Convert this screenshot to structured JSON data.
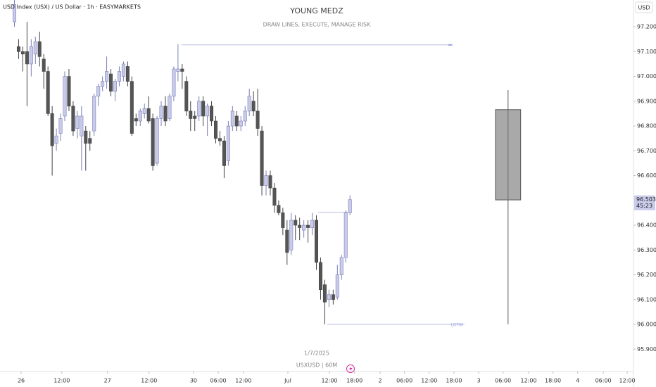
{
  "chart_data": {
    "type": "candlestick",
    "symbol_label": "USD Index (USX) / US Dollar · 1h · EASYMARKETS",
    "title": "YOUNG MEDZ",
    "subtitle": "DRAW LINES, EXECUTE, MANAGE RISK",
    "date_label": "1/7/2025",
    "footer": "USXUSD | 60M",
    "currency": "USD",
    "x": [
      0,
      1,
      2,
      3,
      4,
      5,
      6,
      7,
      8,
      9,
      10,
      11,
      12,
      13,
      14,
      15,
      16,
      17,
      18,
      19,
      20,
      21,
      22,
      23,
      24,
      25,
      26,
      27,
      28,
      29,
      30,
      31,
      32,
      33,
      34,
      35,
      36,
      37,
      38,
      39,
      40,
      41,
      42,
      43,
      44,
      45,
      46,
      47,
      48,
      49,
      50,
      51,
      52,
      53,
      54,
      55,
      56,
      57,
      58,
      59,
      60,
      61,
      62,
      63,
      64,
      65,
      66,
      67,
      68,
      69,
      70,
      71,
      72,
      73,
      74,
      75,
      76,
      77,
      78,
      79,
      80
    ],
    "open": [
      97.22,
      97.12,
      97.1,
      97.1,
      97.05,
      97.09,
      97.14,
      97.07,
      97.02,
      96.85,
      96.73,
      96.77,
      96.84,
      97.0,
      96.88,
      96.79,
      96.76,
      96.78,
      96.75,
      96.78,
      96.92,
      96.96,
      96.98,
      97.01,
      96.94,
      96.98,
      97.0,
      97.04,
      96.98,
      96.83,
      96.82,
      96.85,
      96.87,
      96.83,
      96.65,
      96.83,
      96.88,
      96.83,
      96.92,
      97.02,
      97.03,
      96.98,
      96.86,
      96.84,
      96.84,
      96.9,
      96.84,
      96.88,
      96.82,
      96.75,
      96.74,
      96.66,
      96.8,
      96.84,
      96.8,
      96.82,
      96.86,
      96.9,
      96.86,
      96.78,
      96.56,
      96.6,
      96.55,
      96.48,
      96.45,
      96.38,
      96.3,
      96.42,
      96.4,
      96.38,
      96.4,
      96.39,
      96.42,
      96.25,
      96.16,
      96.1,
      96.12,
      96.11,
      96.2,
      96.27,
      96.45
    ],
    "high": [
      97.31,
      97.15,
      97.12,
      97.22,
      97.15,
      97.16,
      97.18,
      97.09,
      97.04,
      96.88,
      96.79,
      96.85,
      97.02,
      97.03,
      96.9,
      96.86,
      96.88,
      96.8,
      96.78,
      96.93,
      96.97,
      97.0,
      97.08,
      97.03,
      96.99,
      97.04,
      97.06,
      97.06,
      97.0,
      96.85,
      96.87,
      96.89,
      96.92,
      96.85,
      96.84,
      96.9,
      96.92,
      96.93,
      97.04,
      97.13,
      97.05,
      97.0,
      96.9,
      96.86,
      96.92,
      96.92,
      96.89,
      96.9,
      96.84,
      96.78,
      96.76,
      96.82,
      96.88,
      96.86,
      96.84,
      96.88,
      96.95,
      96.94,
      96.95,
      96.8,
      96.62,
      96.62,
      96.57,
      96.5,
      96.47,
      96.42,
      96.45,
      96.44,
      96.43,
      96.42,
      96.42,
      96.45,
      96.44,
      96.27,
      96.18,
      96.14,
      96.14,
      96.24,
      96.28,
      96.46,
      96.52
    ],
    "low": [
      97.2,
      97.07,
      97.02,
      96.88,
      97.0,
      97.05,
      97.04,
      96.95,
      96.84,
      96.6,
      96.7,
      96.74,
      96.82,
      96.86,
      96.76,
      96.75,
      96.62,
      96.62,
      96.7,
      96.76,
      96.88,
      96.94,
      96.95,
      96.92,
      96.9,
      96.96,
      96.98,
      96.96,
      96.76,
      96.8,
      96.8,
      96.83,
      96.81,
      96.62,
      96.64,
      96.8,
      96.8,
      96.82,
      96.9,
      96.98,
      96.95,
      96.84,
      96.78,
      96.78,
      96.82,
      96.8,
      96.76,
      96.8,
      96.73,
      96.72,
      96.59,
      96.64,
      96.78,
      96.78,
      96.78,
      96.8,
      96.84,
      96.84,
      96.76,
      96.52,
      96.52,
      96.52,
      96.45,
      96.44,
      96.36,
      96.24,
      96.28,
      96.34,
      96.34,
      96.35,
      96.33,
      96.36,
      96.22,
      96.1,
      96.0,
      96.07,
      96.08,
      96.1,
      96.18,
      96.25,
      96.44
    ],
    "close": [
      97.29,
      97.1,
      97.09,
      97.05,
      97.12,
      97.14,
      97.08,
      97.02,
      96.85,
      96.72,
      96.76,
      96.83,
      97.0,
      96.88,
      96.78,
      96.84,
      96.84,
      96.73,
      96.73,
      96.92,
      96.96,
      96.98,
      97.02,
      96.94,
      96.98,
      97.02,
      97.05,
      96.98,
      96.77,
      96.82,
      96.86,
      96.87,
      96.82,
      96.64,
      96.83,
      96.88,
      96.82,
      96.92,
      97.03,
      97.03,
      97.02,
      96.86,
      96.83,
      96.83,
      96.9,
      96.84,
      96.88,
      96.82,
      96.75,
      96.74,
      96.64,
      96.8,
      96.86,
      96.8,
      96.82,
      96.86,
      96.92,
      96.86,
      96.79,
      96.56,
      96.6,
      96.55,
      96.48,
      96.45,
      96.39,
      96.29,
      96.42,
      96.4,
      96.39,
      96.4,
      96.39,
      96.42,
      96.25,
      96.14,
      96.09,
      96.12,
      96.1,
      96.2,
      96.27,
      96.45,
      96.503
    ],
    "bull_color": "#c9cbeb",
    "bull_edge": "#7b7fb8",
    "bear_color": "#555555",
    "bear_edge": "#444444",
    "xlim": [
      -3.44,
      147.6
    ],
    "ylim": [
      95.81,
      97.308
    ],
    "xticks": [
      {
        "value": 1.6,
        "label": "26"
      },
      {
        "value": 11.3,
        "label": "12:00"
      },
      {
        "value": 22.2,
        "label": "27"
      },
      {
        "value": 32.1,
        "label": "12:00"
      },
      {
        "value": 42.7,
        "label": "30"
      },
      {
        "value": 48.6,
        "label": "06:00"
      },
      {
        "value": 54.6,
        "label": "12:00"
      },
      {
        "value": 65.2,
        "label": "Jul"
      },
      {
        "value": 75.1,
        "label": "12:00"
      },
      {
        "value": 81.1,
        "label": "18:00"
      },
      {
        "value": 87.2,
        "label": "2"
      },
      {
        "value": 93.0,
        "label": "06:00"
      },
      {
        "value": 98.9,
        "label": "12:00"
      },
      {
        "value": 104.8,
        "label": "18:00"
      },
      {
        "value": 110.7,
        "label": "3"
      },
      {
        "value": 116.5,
        "label": "06:00"
      },
      {
        "value": 122.6,
        "label": "12:00"
      },
      {
        "value": 128.4,
        "label": "18:00"
      },
      {
        "value": 134.3,
        "label": "4"
      },
      {
        "value": 140.4,
        "label": "06:00"
      },
      {
        "value": 146.1,
        "label": "12:00"
      }
    ],
    "yticks": [
      {
        "value": 97.2,
        "label": "97.200"
      },
      {
        "value": 97.1,
        "label": "97.100"
      },
      {
        "value": 97.0,
        "label": "97.000"
      },
      {
        "value": 96.9,
        "label": "96.900"
      },
      {
        "value": 96.8,
        "label": "96.800"
      },
      {
        "value": 96.7,
        "label": "96.700"
      },
      {
        "value": 96.6,
        "label": "96.600"
      },
      {
        "value": 96.4,
        "label": "96.400"
      },
      {
        "value": 96.3,
        "label": "96.300"
      },
      {
        "value": 96.2,
        "label": "96.200"
      },
      {
        "value": 96.1,
        "label": "96.100"
      },
      {
        "value": 96.0,
        "label": "96.000"
      },
      {
        "value": 95.9,
        "label": "95.900"
      }
    ],
    "current_price": {
      "value": 96.503,
      "label": "96.503"
    },
    "countdown": "45:23",
    "levels": [
      {
        "value": 97.127,
        "x": [
          39.9,
          103.9
        ]
      },
      {
        "value": 96.452,
        "x": [
          72.4,
          80.0
        ]
      },
      {
        "value": 96.0,
        "x": [
          74.6,
          107.3
        ],
        "label": "LOTW"
      }
    ],
    "projection": {
      "x": [
        114.7,
        120.7
      ],
      "open": 96.866,
      "high": 96.945,
      "low": 96.0,
      "close": 96.502,
      "color": "#a9a9a9"
    }
  }
}
